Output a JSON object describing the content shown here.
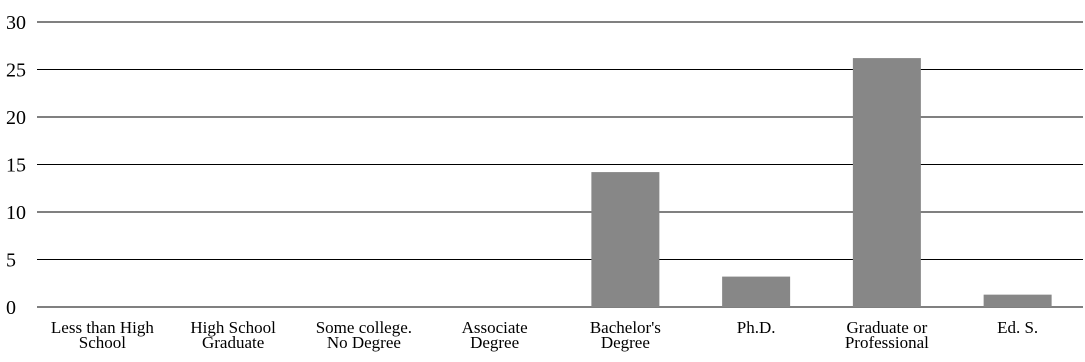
{
  "chart_data": {
    "type": "bar",
    "title": "",
    "xlabel": "",
    "ylabel": "",
    "categories": [
      [
        "Less than High",
        "School"
      ],
      [
        "High School",
        "Graduate"
      ],
      [
        "Some college.",
        "No Degree"
      ],
      [
        "Associate",
        "Degree"
      ],
      [
        "Bachelor's",
        "Degree"
      ],
      [
        "Ph.D."
      ],
      [
        "Graduate or",
        "Professional"
      ],
      [
        "Ed. S."
      ]
    ],
    "values": [
      0,
      0,
      0,
      0,
      14.2,
      3.2,
      26.2,
      1.3
    ],
    "ylim": [
      0,
      30
    ],
    "yticks": [
      "0",
      "5",
      "10",
      "15",
      "20",
      "25",
      "30"
    ],
    "grid": true,
    "bar_color": "#878787"
  }
}
